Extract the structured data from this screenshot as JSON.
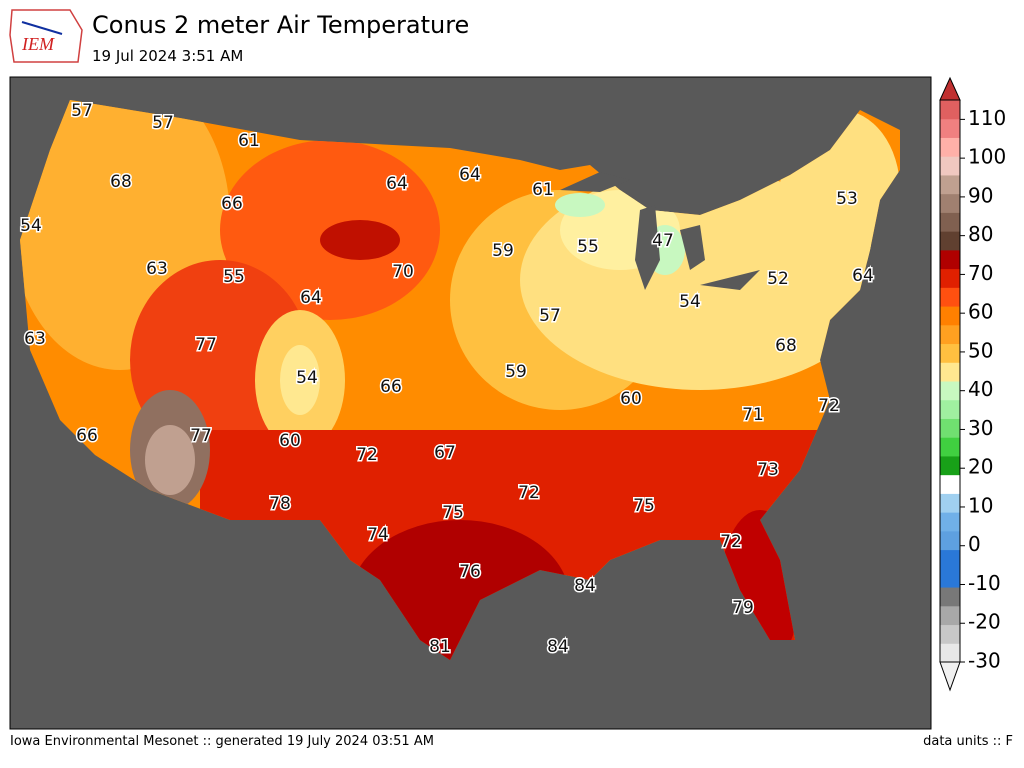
{
  "header": {
    "logo": "IEM",
    "title": "Conus 2 meter Air Temperature",
    "subtitle": "19 Jul 2024 3:51 AM"
  },
  "map": {
    "labels": [
      57,
      57,
      61,
      68,
      66,
      64,
      64,
      61,
      54,
      53,
      63,
      55,
      70,
      59,
      55,
      47,
      64,
      52,
      64,
      54,
      57,
      63,
      77,
      68,
      54,
      66,
      59,
      60,
      72,
      71,
      66,
      77,
      60,
      72,
      67,
      73,
      72,
      78,
      75,
      75,
      74,
      72,
      76,
      84,
      79,
      81,
      84
    ]
  },
  "colorbar": {
    "ticks": [
      -30,
      -20,
      -10,
      0,
      10,
      20,
      30,
      40,
      50,
      60,
      70,
      80,
      90,
      100,
      110
    ]
  },
  "footer": {
    "left": "Iowa Environmental Mesonet :: generated 19 July 2024 03:51 AM",
    "right": "data units :: F"
  }
}
